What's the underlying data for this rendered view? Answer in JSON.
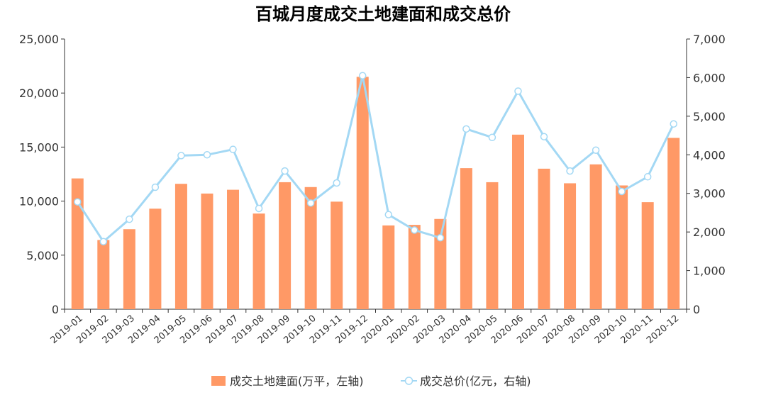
{
  "chart_data": {
    "type": "bar",
    "title": "百城月度成交土地建面和成交总价",
    "categories": [
      "2019-01",
      "2019-02",
      "2019-03",
      "2019-04",
      "2019-05",
      "2019-06",
      "2019-07",
      "2019-08",
      "2019-09",
      "2019-10",
      "2019-11",
      "2019-12",
      "2020-01",
      "2020-02",
      "2020-03",
      "2020-04",
      "2020-05",
      "2020-06",
      "2020-07",
      "2020-08",
      "2020-09",
      "2020-10",
      "2020-11",
      "2020-12"
    ],
    "y_left": {
      "ylim": [
        0,
        25000
      ],
      "ticks": [
        "0",
        "5,000",
        "10,000",
        "15,000",
        "20,000",
        "25,000"
      ]
    },
    "y_right": {
      "ylim": [
        0,
        7000
      ],
      "ticks": [
        "0",
        "1,000",
        "2,000",
        "3,000",
        "4,000",
        "5,000",
        "6,000",
        "7,000"
      ]
    },
    "series": [
      {
        "name": "成交土地建面(万平，左轴)",
        "type": "bar",
        "axis": "left",
        "color": "#FF9966",
        "values": [
          12100,
          6400,
          7400,
          9300,
          11600,
          10700,
          11050,
          8850,
          11750,
          11300,
          9950,
          21500,
          7750,
          7800,
          8350,
          13050,
          11750,
          16150,
          13000,
          11650,
          13400,
          11450,
          9900,
          15850
        ]
      },
      {
        "name": "成交总价(亿元，右轴)",
        "type": "line",
        "axis": "right",
        "color": "#A3D8F4",
        "values": [
          2780,
          1750,
          2330,
          3160,
          3980,
          4000,
          4140,
          2610,
          3580,
          2750,
          3270,
          6050,
          2450,
          2050,
          1850,
          4670,
          4450,
          5650,
          4470,
          3580,
          4120,
          3050,
          3430,
          4800
        ]
      }
    ],
    "legend": "bottom-center",
    "grid": false
  }
}
